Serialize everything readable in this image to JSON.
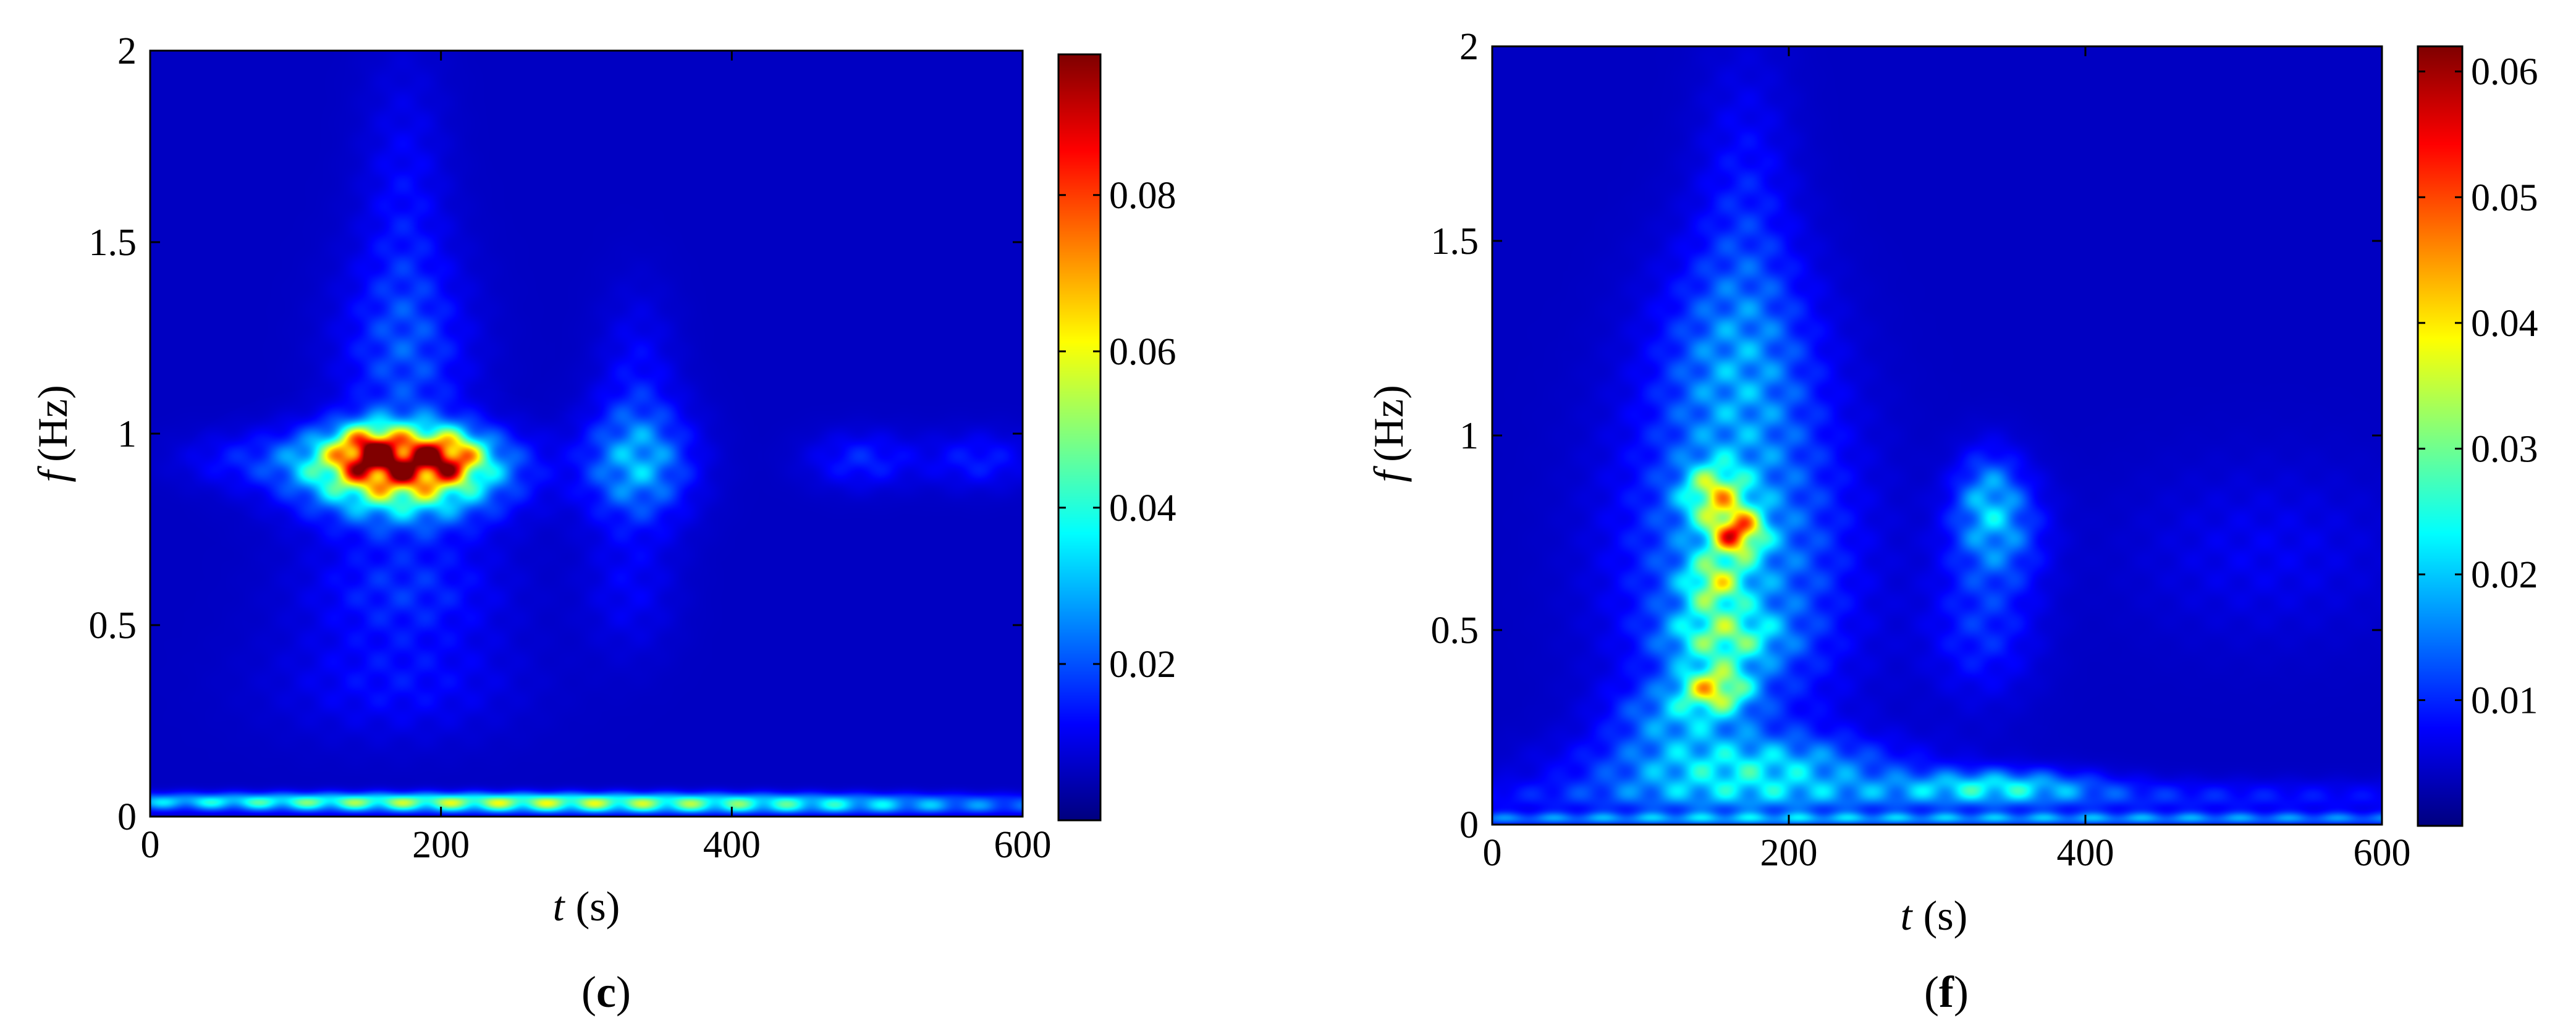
{
  "colormap": "jet",
  "colors": {
    "background": "#ffffff",
    "plot_base": "#00008f",
    "axis": "#000000"
  },
  "chart_data": [
    {
      "type": "heatmap",
      "panel_label": "c",
      "x_axis": {
        "variable": "t",
        "unit": "(s)",
        "range": [
          0,
          600
        ],
        "ticks": [
          0,
          200,
          400,
          600
        ],
        "tick_labels": [
          "0",
          "200",
          "400",
          "600"
        ]
      },
      "y_axis": {
        "variable": "f",
        "unit": "(Hz)",
        "range": [
          0,
          2
        ],
        "ticks": [
          0,
          0.5,
          1,
          1.5,
          2
        ],
        "tick_labels": [
          "0",
          "0.5",
          "1",
          "1.5",
          "2"
        ]
      },
      "colorbar": {
        "range": [
          0,
          0.098
        ],
        "ticks": [
          0.02,
          0.04,
          0.06,
          0.08
        ],
        "tick_labels": [
          "0.02",
          "0.04",
          "0.06",
          "0.08"
        ]
      },
      "blobs": [
        {
          "t": 170,
          "f": 0.93,
          "st": 42,
          "sf": 0.06,
          "amp": 0.095
        },
        {
          "t": 150,
          "f": 0.96,
          "st": 14,
          "sf": 0.04,
          "amp": 0.045
        },
        {
          "t": 205,
          "f": 0.94,
          "st": 14,
          "sf": 0.04,
          "amp": 0.04
        },
        {
          "t": 175,
          "f": 0.85,
          "st": 45,
          "sf": 0.07,
          "amp": 0.035
        },
        {
          "t": 175,
          "f": 1.2,
          "st": 30,
          "sf": 0.18,
          "amp": 0.016
        },
        {
          "t": 175,
          "f": 1.6,
          "st": 20,
          "sf": 0.25,
          "amp": 0.008
        },
        {
          "t": 175,
          "f": 0.6,
          "st": 45,
          "sf": 0.1,
          "amp": 0.013
        },
        {
          "t": 170,
          "f": 0.35,
          "st": 55,
          "sf": 0.1,
          "amp": 0.009
        },
        {
          "t": 335,
          "f": 0.92,
          "st": 25,
          "sf": 0.1,
          "amp": 0.03
        },
        {
          "t": 335,
          "f": 1.15,
          "st": 18,
          "sf": 0.15,
          "amp": 0.008
        },
        {
          "t": 330,
          "f": 0.6,
          "st": 22,
          "sf": 0.12,
          "amp": 0.007
        },
        {
          "t": 490,
          "f": 0.93,
          "st": 25,
          "sf": 0.05,
          "amp": 0.012
        },
        {
          "t": 570,
          "f": 0.93,
          "st": 25,
          "sf": 0.05,
          "amp": 0.011
        },
        {
          "t": 60,
          "f": 0.93,
          "st": 30,
          "sf": 0.05,
          "amp": 0.008
        },
        {
          "t": 240,
          "f": 0.04,
          "st": 220,
          "sf": 0.015,
          "amp": 0.055
        },
        {
          "t": 380,
          "f": 0.02,
          "st": 200,
          "sf": 0.012,
          "amp": 0.02
        }
      ]
    },
    {
      "type": "heatmap",
      "panel_label": "f",
      "x_axis": {
        "variable": "t",
        "unit": "(s)",
        "range": [
          0,
          600
        ],
        "ticks": [
          0,
          200,
          400,
          600
        ],
        "tick_labels": [
          "0",
          "200",
          "400",
          "600"
        ]
      },
      "y_axis": {
        "variable": "f",
        "unit": "(Hz)",
        "range": [
          0,
          2
        ],
        "ticks": [
          0,
          0.5,
          1,
          1.5,
          2
        ],
        "tick_labels": [
          "0",
          "0.5",
          "1",
          "1.5",
          "2"
        ]
      },
      "colorbar": {
        "range": [
          0,
          0.062
        ],
        "ticks": [
          0.01,
          0.02,
          0.03,
          0.04,
          0.05,
          0.06
        ],
        "tick_labels": [
          "0.01",
          "0.02",
          "0.03",
          "0.04",
          "0.05",
          "0.06"
        ]
      },
      "blobs": [
        {
          "t": 165,
          "f": 0.75,
          "st": 12,
          "sf": 0.04,
          "amp": 0.045
        },
        {
          "t": 150,
          "f": 0.85,
          "st": 14,
          "sf": 0.05,
          "amp": 0.03
        },
        {
          "t": 150,
          "f": 0.62,
          "st": 14,
          "sf": 0.05,
          "amp": 0.025
        },
        {
          "t": 150,
          "f": 0.35,
          "st": 16,
          "sf": 0.04,
          "amp": 0.035
        },
        {
          "t": 155,
          "f": 0.48,
          "st": 25,
          "sf": 0.05,
          "amp": 0.022
        },
        {
          "t": 165,
          "f": 0.68,
          "st": 50,
          "sf": 0.3,
          "amp": 0.018
        },
        {
          "t": 165,
          "f": 1.2,
          "st": 35,
          "sf": 0.2,
          "amp": 0.013
        },
        {
          "t": 170,
          "f": 1.6,
          "st": 22,
          "sf": 0.25,
          "amp": 0.006
        },
        {
          "t": 170,
          "f": 0.14,
          "st": 70,
          "sf": 0.06,
          "amp": 0.022
        },
        {
          "t": 125,
          "f": 0.28,
          "st": 30,
          "sf": 0.06,
          "amp": 0.013
        },
        {
          "t": 340,
          "f": 0.75,
          "st": 22,
          "sf": 0.1,
          "amp": 0.014
        },
        {
          "t": 335,
          "f": 0.85,
          "st": 15,
          "sf": 0.08,
          "amp": 0.012
        },
        {
          "t": 330,
          "f": 0.5,
          "st": 25,
          "sf": 0.12,
          "amp": 0.008
        },
        {
          "t": 340,
          "f": 0.1,
          "st": 45,
          "sf": 0.03,
          "amp": 0.02
        },
        {
          "t": 300,
          "f": 0.07,
          "st": 280,
          "sf": 0.03,
          "amp": 0.009
        },
        {
          "t": 300,
          "f": 0.015,
          "st": 450,
          "sf": 0.012,
          "amp": 0.016
        },
        {
          "t": 520,
          "f": 0.7,
          "st": 60,
          "sf": 0.15,
          "amp": 0.004
        }
      ]
    }
  ]
}
